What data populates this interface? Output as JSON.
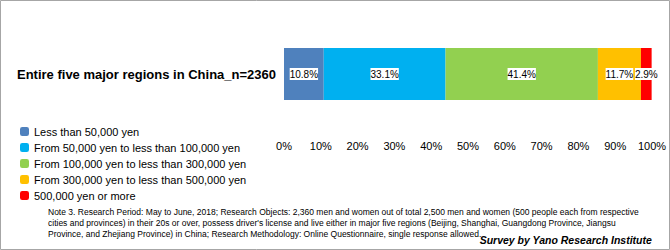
{
  "chart_data": {
    "type": "bar",
    "orientation": "horizontal",
    "stacked": true,
    "data_labels": true,
    "grid": false,
    "legend": "bottom-left",
    "categories": [
      "Entire five major regions in China_n=2360"
    ],
    "series": [
      {
        "name": "Less than 50,000 yen",
        "color": "#4f81bd",
        "values": [
          10.8
        ],
        "value_labels": [
          "10.8%"
        ]
      },
      {
        "name": "From 50,000 yen to less than 100,000 yen",
        "color": "#00b0f0",
        "values": [
          33.1
        ],
        "value_labels": [
          "33.1%"
        ]
      },
      {
        "name": "From 100,000 yen to less than 300,000 yen",
        "color": "#92d050",
        "values": [
          41.4
        ],
        "value_labels": [
          "41.4%"
        ]
      },
      {
        "name": "From 300,000 yen to less than 500,000 yen",
        "color": "#ffc000",
        "values": [
          11.7
        ],
        "value_labels": [
          "11.7%"
        ]
      },
      {
        "name": "500,000 yen or more",
        "color": "#ff0000",
        "values": [
          2.9
        ],
        "value_labels": [
          "2.9%"
        ]
      }
    ],
    "xlim": [
      0,
      100
    ],
    "xticks": [
      {
        "value": 0,
        "label": "0%"
      },
      {
        "value": 10,
        "label": "10%"
      },
      {
        "value": 20,
        "label": "20%"
      },
      {
        "value": 30,
        "label": "30%"
      },
      {
        "value": 40,
        "label": "40%"
      },
      {
        "value": 50,
        "label": "50%"
      },
      {
        "value": 60,
        "label": "60%"
      },
      {
        "value": 70,
        "label": "70%"
      },
      {
        "value": 80,
        "label": "80%"
      },
      {
        "value": 90,
        "label": "90%"
      },
      {
        "value": 100,
        "label": "100%"
      }
    ],
    "note": "Note 3. Research Period: May to June, 2018; Research Objects: 2,360 men and women out of total 2,500 men and women (500 people each from respective cities and provinces) in their 20s or over, possess driver's license and live either in major five regions (Beijing, Shanghai, Guangdong Province, Jiangsu Province, and Zhejiang Province) in China; Research Methodology: Online Questionnaire, single response allowed.",
    "source": "Survey by Yano Research Institute"
  }
}
